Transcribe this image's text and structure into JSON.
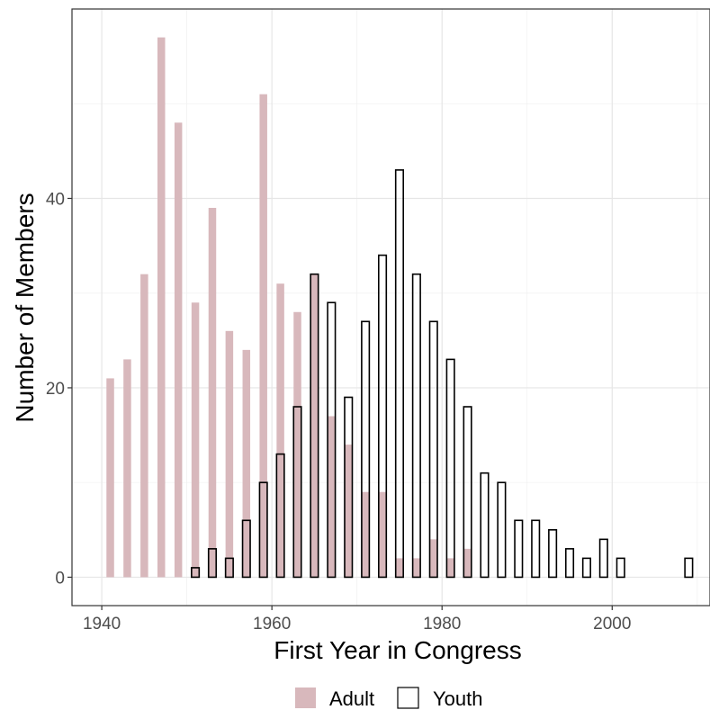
{
  "chart_data": {
    "type": "bar",
    "xlabel": "First Year in Congress",
    "ylabel": "Number of Members",
    "xlim": [
      1936.5,
      2011.5
    ],
    "ylim": [
      -3,
      60
    ],
    "xticks": [
      1940,
      1960,
      1980,
      2000
    ],
    "yticks": [
      0,
      20,
      40
    ],
    "grid": true,
    "legend_position": "bottom",
    "series": [
      {
        "name": "Adult",
        "fill": "#d8b8bc",
        "outline": "none",
        "x": [
          1941,
          1943,
          1945,
          1947,
          1949,
          1951,
          1953,
          1955,
          1957,
          1959,
          1961,
          1963,
          1965,
          1967,
          1969,
          1971,
          1973,
          1975,
          1977,
          1979,
          1981,
          1983
        ],
        "values": [
          21,
          23,
          32,
          57,
          48,
          29,
          39,
          26,
          24,
          51,
          31,
          28,
          32,
          17,
          14,
          9,
          9,
          2,
          2,
          4,
          2,
          3
        ]
      },
      {
        "name": "Youth",
        "fill": "none",
        "outline": "#000000",
        "x": [
          1951,
          1953,
          1955,
          1957,
          1959,
          1961,
          1963,
          1965,
          1967,
          1969,
          1971,
          1973,
          1975,
          1977,
          1979,
          1981,
          1983,
          1985,
          1987,
          1989,
          1991,
          1993,
          1995,
          1997,
          1999,
          2001,
          2009
        ],
        "values": [
          1,
          3,
          2,
          6,
          10,
          13,
          18,
          32,
          29,
          19,
          27,
          34,
          43,
          32,
          27,
          23,
          18,
          11,
          10,
          6,
          6,
          5,
          3,
          2,
          4,
          2,
          2
        ]
      }
    ]
  }
}
